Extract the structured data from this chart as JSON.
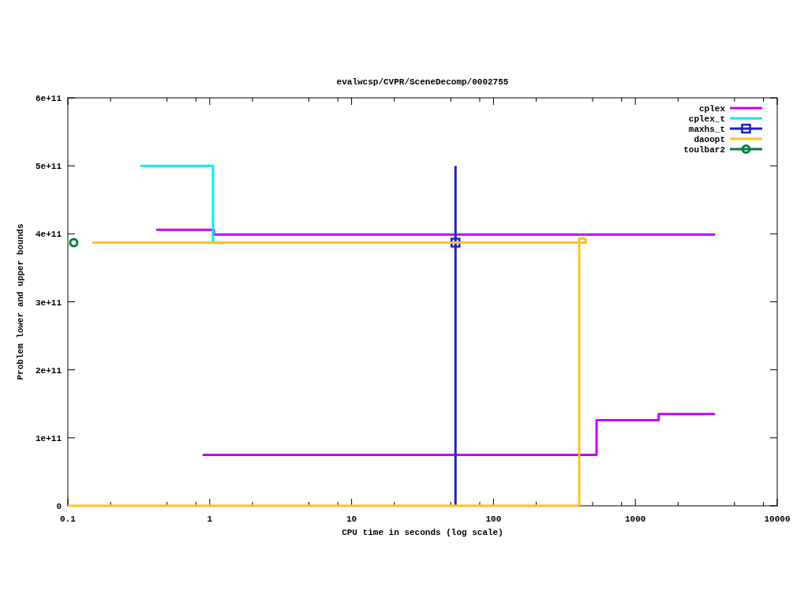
{
  "chart_data": {
    "type": "step",
    "title": "evalwcsp/CVPR/SceneDecomp/0002755",
    "xlabel": "CPU time in seconds (log scale)",
    "ylabel": "Problem lower and upper bounds",
    "log": "x",
    "xlim": [
      0.1,
      10000
    ],
    "xticks": [
      0.1,
      {
        "value": 0.2,
        "label": null
      },
      {
        "value": 0.5,
        "label": null
      },
      {
        "value": 0.8,
        "label": null
      },
      1,
      {
        "value": 2,
        "label": null
      },
      {
        "value": 5,
        "label": null
      },
      {
        "value": 8,
        "label": null
      },
      10,
      {
        "value": 20,
        "label": null
      },
      {
        "value": 50,
        "label": null
      },
      {
        "value": 80,
        "label": null
      },
      100,
      {
        "value": 200,
        "label": null
      },
      {
        "value": 500,
        "label": null
      },
      {
        "value": 800,
        "label": null
      },
      1000,
      {
        "value": 2000,
        "label": null
      },
      {
        "value": 5000,
        "label": null
      },
      {
        "value": 8000,
        "label": null
      },
      10000
    ],
    "ylim": [
      0,
      600000000000.0
    ],
    "yticks": [
      0,
      {
        "value": 100000000000.0,
        "label": "1e+11"
      },
      {
        "value": 200000000000.0,
        "label": "2e+11"
      },
      {
        "value": 300000000000.0,
        "label": "3e+11"
      },
      {
        "value": 400000000000.0,
        "label": "4e+11"
      },
      {
        "value": 500000000000.0,
        "label": "5e+11"
      },
      {
        "value": 600000000000.0,
        "label": "6e+11"
      }
    ],
    "legend": "top right",
    "series": [
      {
        "name": "cplex",
        "color": "#c000ff",
        "x": [
          0.42,
          1.07,
          3650
        ],
        "values": [
          406000000000.0,
          399000000000.0,
          399000000000.0
        ]
      },
      {
        "color": "#c000ff",
        "x": [
          0.89,
          533,
          1462,
          3650
        ],
        "values": [
          75000000000.0,
          126000000000.0,
          135000000000.0,
          135000000000.0
        ]
      },
      {
        "name": "cplex_t",
        "color": "#00eeee",
        "x": [
          0.324,
          1.055
        ],
        "values": [
          500000000000.0,
          387000000000.0
        ]
      },
      {
        "color": "#2020c0",
        "x": [
          54,
          54
        ],
        "values": [
          0,
          500000000000.0
        ]
      },
      {
        "name": "maxhs_t",
        "type": "scatter",
        "color": "#2020c0",
        "marker": "square",
        "x": [
          54
        ],
        "values": [
          387000000000.0
        ]
      },
      {
        "name": "daoopt",
        "color": "#ffc020",
        "x": [
          0.149,
          447
        ],
        "values": [
          387000000000.0,
          393000000000.0
        ]
      },
      {
        "color": "#ffc020",
        "x": [
          0.1,
          402
        ],
        "values": [
          0,
          0
        ]
      },
      {
        "color": "#ffc020",
        "x": [
          402,
          402,
          447
        ],
        "values": [
          0,
          393000000000.0,
          393000000000.0
        ]
      },
      {
        "name": "toulbar2",
        "type": "scatter",
        "color": "#008040",
        "marker": "circle",
        "x": [
          0.11
        ],
        "values": [
          387000000000.0
        ]
      }
    ]
  }
}
